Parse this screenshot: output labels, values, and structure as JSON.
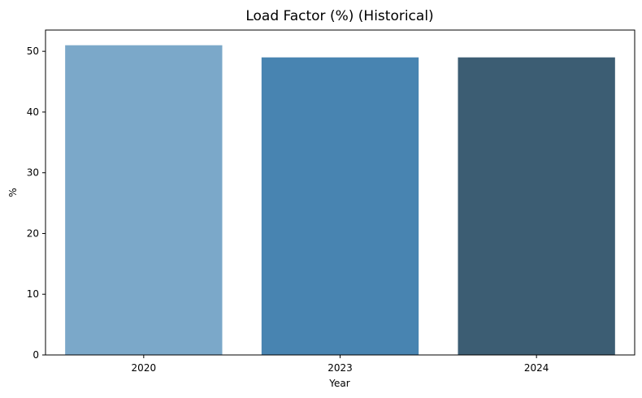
{
  "chart_data": {
    "type": "bar",
    "title": "Load Factor (%) (Historical)",
    "xlabel": "Year",
    "ylabel": "%",
    "categories": [
      "2020",
      "2023",
      "2024"
    ],
    "values": [
      51,
      49,
      49
    ],
    "colors": [
      "#7ba8c9",
      "#4884b1",
      "#3c5d73"
    ],
    "ylim": [
      0,
      53.5
    ],
    "yticks": [
      0,
      10,
      20,
      30,
      40,
      50
    ],
    "grid": false,
    "legend": "none"
  }
}
